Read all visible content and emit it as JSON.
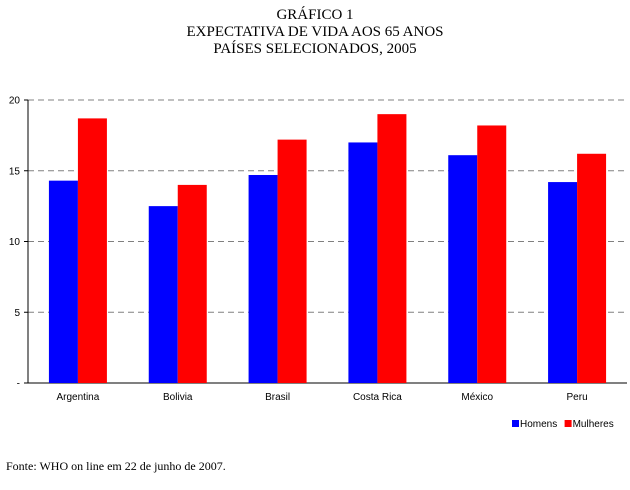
{
  "chart_data": {
    "type": "bar",
    "title": "GRÁFICO 1",
    "subtitle": [
      "EXPECTATIVA DE VIDA AOS 65 ANOS",
      "PAÍSES SELECIONADOS, 2005"
    ],
    "categories": [
      "Argentina",
      "Bolivia",
      "Brasil",
      "Costa Rica",
      "México",
      "Peru"
    ],
    "series": [
      {
        "name": "Homens",
        "color": "#0000ff",
        "values": [
          14.3,
          12.5,
          14.7,
          17.0,
          16.1,
          14.2
        ]
      },
      {
        "name": "Mulheres",
        "color": "#ff0000",
        "values": [
          18.7,
          14.0,
          17.2,
          19.0,
          18.2,
          16.2
        ]
      }
    ],
    "ylim": [
      0,
      20
    ],
    "yticks": [
      "-",
      "5",
      "10",
      "15",
      "20"
    ],
    "grid": true,
    "legend_position": "bottom-right",
    "source": "Fonte: WHO on line em 22 de junho de 2007."
  }
}
